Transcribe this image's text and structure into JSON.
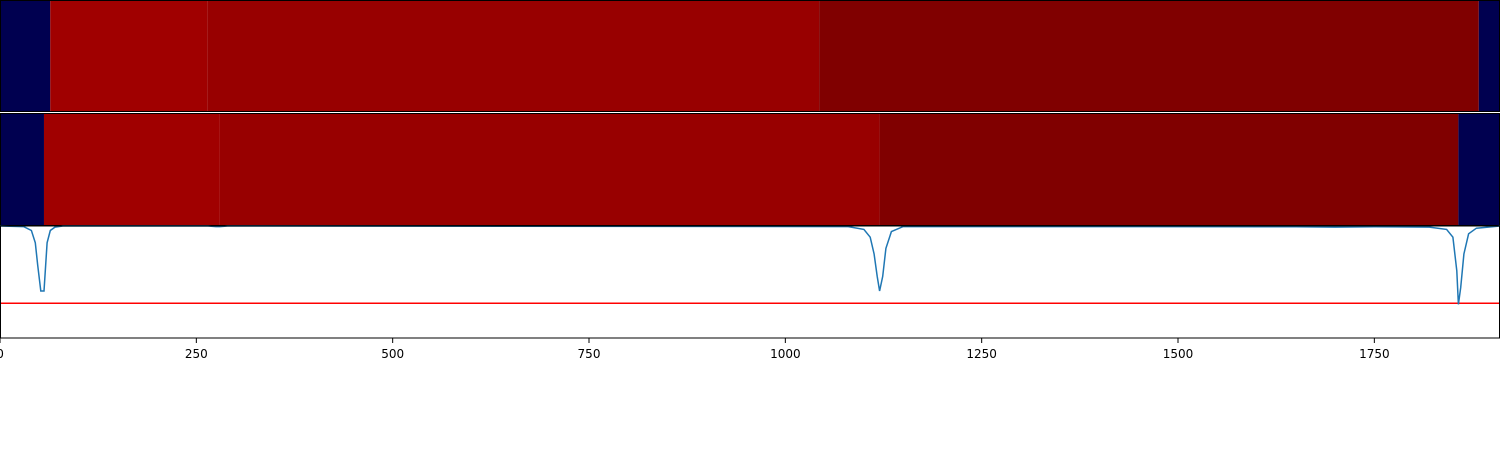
{
  "chart_data": {
    "type": "heatmap",
    "x_range": [
      0,
      1910
    ],
    "x_ticks": [
      0,
      250,
      500,
      750,
      1000,
      1250,
      1500,
      1750
    ],
    "x_tick_labels": [
      "0",
      "250",
      "500",
      "750",
      "1000",
      "1250",
      "1500",
      "1750"
    ],
    "colors": {
      "background_segment": "#000050",
      "level_1": "#a00000",
      "level_2": "#980000",
      "level_3": "#800000",
      "line": "#1f77b4",
      "threshold": "#ff0000"
    },
    "tracks": [
      {
        "segments": [
          {
            "start": 0,
            "end": 64,
            "color": "#000050"
          },
          {
            "start": 64,
            "end": 264,
            "color": "#a00000"
          },
          {
            "start": 264,
            "end": 1043,
            "color": "#980000"
          },
          {
            "start": 1043,
            "end": 1883,
            "color": "#800000"
          },
          {
            "start": 1883,
            "end": 1910,
            "color": "#000050"
          }
        ]
      },
      {
        "segments": [
          {
            "start": 0,
            "end": 56,
            "color": "#000050"
          },
          {
            "start": 56,
            "end": 280,
            "color": "#a00000"
          },
          {
            "start": 280,
            "end": 1120,
            "color": "#980000"
          },
          {
            "start": 1120,
            "end": 1857,
            "color": "#800000"
          },
          {
            "start": 1857,
            "end": 1910,
            "color": "#000050"
          }
        ]
      }
    ],
    "line_series": {
      "y_range": [
        0,
        1
      ],
      "x": [
        0,
        30,
        40,
        45,
        48,
        52,
        56,
        60,
        64,
        70,
        80,
        265,
        275,
        280,
        290,
        300,
        1080,
        1100,
        1108,
        1113,
        1117,
        1120,
        1124,
        1128,
        1135,
        1150,
        1400,
        1650,
        1700,
        1750,
        1820,
        1842,
        1850,
        1855,
        1857,
        1860,
        1864,
        1870,
        1880,
        1910
      ],
      "y": [
        1.0,
        0.995,
        0.96,
        0.85,
        0.65,
        0.42,
        0.42,
        0.85,
        0.96,
        0.99,
        1.0,
        1.0,
        0.995,
        0.995,
        1.0,
        1.0,
        0.995,
        0.97,
        0.9,
        0.75,
        0.55,
        0.42,
        0.55,
        0.8,
        0.95,
        0.995,
        0.995,
        0.993,
        0.99,
        0.993,
        0.99,
        0.97,
        0.9,
        0.6,
        0.3,
        0.45,
        0.75,
        0.93,
        0.98,
        1.0
      ]
    },
    "threshold_value": 0.31,
    "grid": false,
    "legend": "none"
  }
}
